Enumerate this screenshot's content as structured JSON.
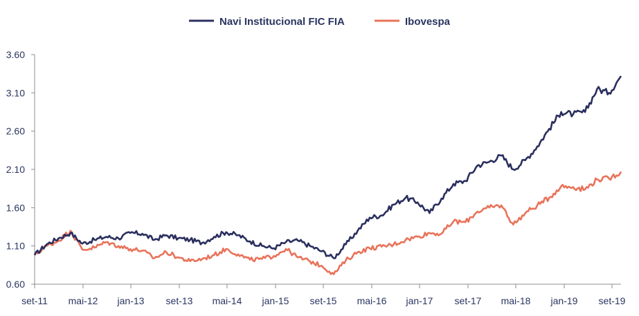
{
  "chart_data": {
    "type": "line",
    "title": "",
    "xlabel": "",
    "ylabel": "",
    "ylim": [
      0.6,
      3.6
    ],
    "yticks": [
      "3.60",
      "3.10",
      "2.60",
      "2.10",
      "1.60",
      "1.10",
      "0.60"
    ],
    "ytick_values": [
      3.6,
      3.1,
      2.6,
      2.1,
      1.6,
      1.1,
      0.6
    ],
    "xticks": [
      "set-11",
      "mai-12",
      "jan-13",
      "set-13",
      "mai-14",
      "jan-15",
      "set-15",
      "mai-16",
      "jan-17",
      "set-17",
      "mai-18",
      "jan-19",
      "set-19"
    ],
    "grid": false,
    "legend_position": "top-center",
    "x": [
      "set-11",
      "nov-11",
      "jan-12",
      "mar-12",
      "mai-12",
      "jul-12",
      "set-12",
      "nov-12",
      "jan-13",
      "mar-13",
      "mai-13",
      "jul-13",
      "set-13",
      "nov-13",
      "jan-14",
      "mar-14",
      "mai-14",
      "jul-14",
      "set-14",
      "nov-14",
      "jan-15",
      "mar-15",
      "mai-15",
      "jul-15",
      "set-15",
      "nov-15",
      "jan-16",
      "mar-16",
      "mai-16",
      "jul-16",
      "set-16",
      "nov-16",
      "jan-17",
      "mar-17",
      "mai-17",
      "jul-17",
      "set-17",
      "nov-17",
      "jan-18",
      "mar-18",
      "mai-18",
      "jul-18",
      "set-18",
      "nov-18",
      "jan-19",
      "mar-19",
      "mai-19",
      "jul-19",
      "set-19",
      "out-19"
    ],
    "series": [
      {
        "name": "Navi Institucional FIC FIA",
        "color": "#2a2f5e",
        "values": [
          0.98,
          1.12,
          1.2,
          1.27,
          1.13,
          1.18,
          1.22,
          1.2,
          1.27,
          1.26,
          1.18,
          1.24,
          1.2,
          1.18,
          1.14,
          1.22,
          1.28,
          1.24,
          1.16,
          1.1,
          1.07,
          1.15,
          1.17,
          1.1,
          1.03,
          0.94,
          1.12,
          1.3,
          1.47,
          1.5,
          1.64,
          1.73,
          1.67,
          1.53,
          1.72,
          1.91,
          1.95,
          2.15,
          2.2,
          2.28,
          2.1,
          2.22,
          2.4,
          2.63,
          2.85,
          2.82,
          2.85,
          3.15,
          3.1,
          3.32
        ]
      },
      {
        "name": "Ibovespa",
        "color": "#e8735a",
        "values": [
          0.98,
          1.1,
          1.17,
          1.3,
          1.05,
          1.08,
          1.15,
          1.1,
          1.06,
          1.04,
          0.94,
          1.02,
          0.95,
          0.9,
          0.93,
          0.98,
          1.06,
          0.99,
          0.92,
          0.93,
          0.97,
          1.06,
          0.95,
          0.9,
          0.84,
          0.73,
          0.91,
          1.02,
          1.07,
          1.09,
          1.12,
          1.18,
          1.22,
          1.27,
          1.26,
          1.42,
          1.41,
          1.55,
          1.6,
          1.63,
          1.38,
          1.53,
          1.63,
          1.73,
          1.88,
          1.87,
          1.84,
          1.97,
          1.98,
          2.07
        ]
      }
    ]
  }
}
